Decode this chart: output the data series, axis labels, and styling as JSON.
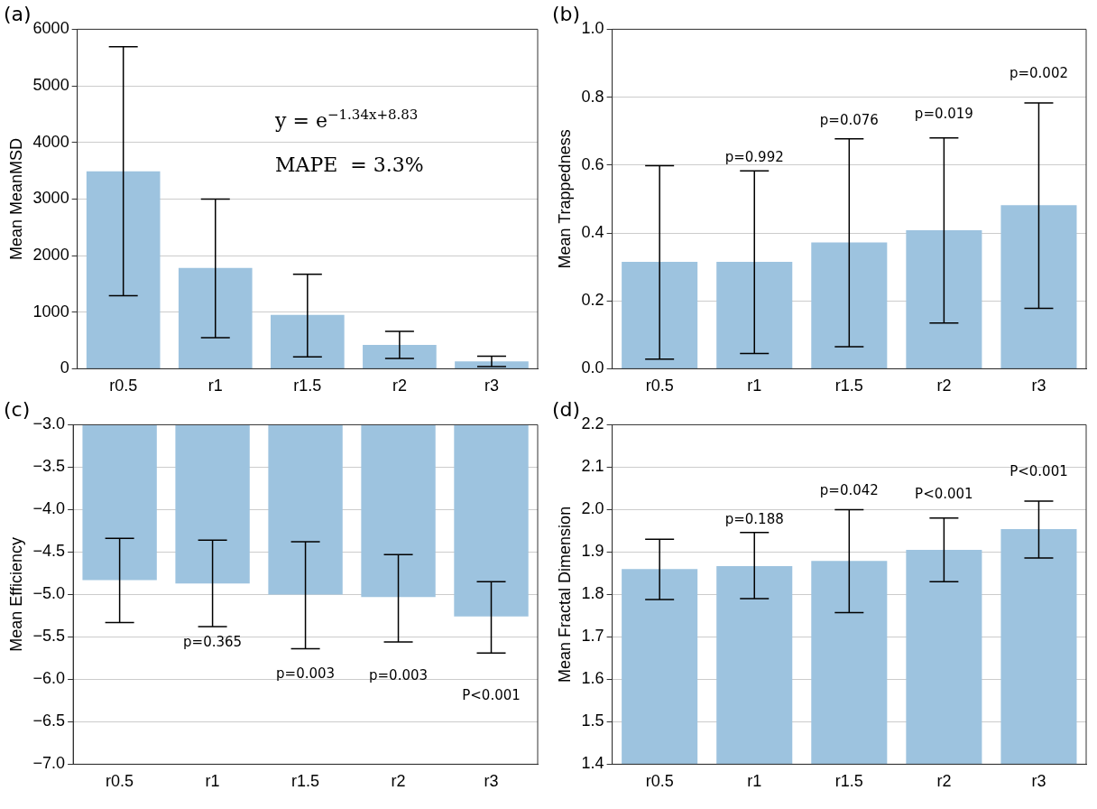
{
  "chart_data": [
    {
      "type": "bar",
      "title": "(a)",
      "ylabel": "Mean MeanMSD",
      "categories": [
        "r0.5",
        "r1",
        "r1.5",
        "r2",
        "r3"
      ],
      "values": [
        3490,
        1780,
        950,
        420,
        130
      ],
      "color": "#9dc3df",
      "errors": [
        [
          1290,
          5690
        ],
        [
          550,
          3000
        ],
        [
          210,
          1670
        ],
        [
          180,
          660
        ],
        [
          40,
          220
        ]
      ],
      "ylim": [
        0,
        6000
      ],
      "yticks": [
        0,
        1000,
        2000,
        3000,
        4000,
        5000,
        6000
      ],
      "grid": "y",
      "legend": false,
      "annotations": [
        "y = e$^{−1.34x+8.83}$",
        "MAPE  = 3.3%"
      ]
    },
    {
      "type": "bar",
      "title": "(b)",
      "ylabel": "Mean Trappedness",
      "categories": [
        "r0.5",
        "r1",
        "r1.5",
        "r2",
        "r3"
      ],
      "values": [
        0.315,
        0.315,
        0.372,
        0.408,
        0.482
      ],
      "color": "#9dc3df",
      "errors": [
        [
          0.028,
          0.598
        ],
        [
          0.045,
          0.583
        ],
        [
          0.065,
          0.677
        ],
        [
          0.135,
          0.68
        ],
        [
          0.178,
          0.783
        ]
      ],
      "ylim": [
        0,
        1
      ],
      "yticks": [
        {
          "value": 0,
          "label": "0.0"
        },
        0.2,
        0.4,
        0.6,
        0.8,
        {
          "value": 1,
          "label": "1.0"
        }
      ],
      "grid": "y",
      "legend": false,
      "annotations": [
        "p=0.992",
        "p=0.076",
        "p=0.019",
        "p=0.002"
      ]
    },
    {
      "type": "bar",
      "title": "(c)",
      "ylabel": "Mean Efficiency",
      "categories": [
        "r0.5",
        "r1",
        "r1.5",
        "r2",
        "r3"
      ],
      "values": [
        -4.83,
        -4.87,
        -5.0,
        -5.03,
        -5.26
      ],
      "color": "#9dc3df",
      "errors": [
        [
          -5.33,
          -4.34
        ],
        [
          -5.38,
          -4.36
        ],
        [
          -5.64,
          -4.38
        ],
        [
          -5.56,
          -4.53
        ],
        [
          -5.69,
          -4.85
        ]
      ],
      "ylim": [
        -7,
        -3
      ],
      "yticks": [
        {
          "value": -7,
          "label": "−7.0"
        },
        {
          "value": -6.5,
          "label": "−6.5"
        },
        {
          "value": -6,
          "label": "−6.0"
        },
        {
          "value": -5.5,
          "label": "−5.5"
        },
        {
          "value": -5,
          "label": "−5.0"
        },
        {
          "value": -4.5,
          "label": "−4.5"
        },
        {
          "value": -4,
          "label": "−4.0"
        },
        {
          "value": -3.5,
          "label": "−3.5"
        },
        {
          "value": -3,
          "label": "−3.0"
        }
      ],
      "grid": "y",
      "legend": false,
      "annotations": [
        "p=0.365",
        "p=0.003",
        "p=0.003",
        "P<0.001"
      ]
    },
    {
      "type": "bar",
      "title": "(d)",
      "ylabel": "Mean Fractal Dimension",
      "categories": [
        "r0.5",
        "r1",
        "r1.5",
        "r2",
        "r3"
      ],
      "values": [
        1.86,
        1.867,
        1.879,
        1.905,
        1.954
      ],
      "color": "#9dc3df",
      "errors": [
        [
          1.788,
          1.93
        ],
        [
          1.79,
          1.946
        ],
        [
          1.757,
          2.0
        ],
        [
          1.83,
          1.98
        ],
        [
          1.886,
          2.02
        ]
      ],
      "ylim": [
        1.4,
        2.2
      ],
      "yticks": [
        1.4,
        1.5,
        1.6,
        1.7,
        1.8,
        1.9,
        {
          "value": 2,
          "label": "2.0"
        },
        2.1,
        2.2
      ],
      "grid": "y",
      "legend": false,
      "annotations": [
        "p=0.188",
        "p=0.042",
        "P<0.001",
        "P<0.001"
      ]
    }
  ]
}
